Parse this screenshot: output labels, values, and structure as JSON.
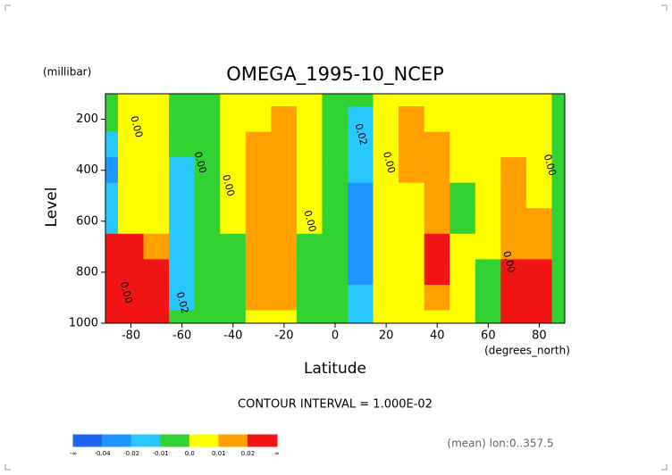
{
  "chart_data": {
    "type": "contour",
    "title": "OMEGA_1995-10_NCEP",
    "y_unit": "(millibar)",
    "y_label": "Level",
    "x_label": "Latitude",
    "x_unit": "(degrees_north)",
    "note": "CONTOUR INTERVAL = 1.000E-02",
    "footer": "(mean) lon:0..357.5",
    "xlim": [
      -90,
      90
    ],
    "ylim": [
      1000,
      100
    ],
    "xticks": [
      -80,
      -60,
      -40,
      -20,
      0,
      20,
      40,
      60,
      80
    ],
    "yticks": [
      200,
      400,
      600,
      800,
      1000
    ],
    "x": [
      -90,
      -80,
      -70,
      -60,
      -50,
      -40,
      -30,
      -20,
      -10,
      0,
      10,
      20,
      30,
      40,
      50,
      60,
      70,
      80,
      90
    ],
    "y": [
      100,
      200,
      300,
      400,
      500,
      600,
      700,
      800,
      900,
      1000
    ],
    "z": [
      [
        -0.005,
        0.005,
        0.005,
        -0.005,
        -0.005,
        0.005,
        0.005,
        0.008,
        0.004,
        -0.004,
        -0.008,
        0.004,
        0.006,
        0.005,
        0.004,
        0.004,
        0.005,
        0.003,
        -0.003
      ],
      [
        -0.008,
        0.005,
        0.005,
        -0.005,
        -0.005,
        0.005,
        0.008,
        0.014,
        0.005,
        -0.004,
        -0.014,
        0.004,
        0.012,
        0.008,
        0.004,
        0.004,
        0.006,
        0.004,
        -0.003
      ],
      [
        -0.015,
        0.005,
        0.003,
        -0.008,
        -0.005,
        0.004,
        0.012,
        0.016,
        0.005,
        -0.004,
        -0.016,
        0.004,
        0.012,
        0.012,
        0.003,
        0.004,
        0.008,
        0.005,
        -0.003
      ],
      [
        -0.025,
        0.005,
        0.003,
        -0.012,
        -0.005,
        0.004,
        0.015,
        0.017,
        0.004,
        -0.004,
        -0.018,
        0.004,
        0.011,
        0.014,
        0.002,
        0.003,
        0.011,
        0.006,
        -0.003
      ],
      [
        -0.02,
        0.005,
        0.004,
        -0.015,
        -0.005,
        0.003,
        0.015,
        0.017,
        0.003,
        -0.004,
        -0.022,
        0.004,
        0.008,
        0.015,
        -0.002,
        0.002,
        0.013,
        0.008,
        -0.003
      ],
      [
        -0.012,
        0.008,
        0.006,
        -0.015,
        -0.005,
        0.002,
        0.015,
        0.016,
        0.002,
        -0.004,
        -0.024,
        0.004,
        0.006,
        0.017,
        -0.005,
        0.002,
        0.014,
        0.01,
        -0.003
      ],
      [
        0.025,
        0.03,
        0.015,
        -0.015,
        -0.005,
        -0.003,
        0.014,
        0.015,
        -0.002,
        -0.004,
        -0.025,
        0.004,
        0.006,
        0.022,
        0.002,
        0.001,
        0.016,
        0.015,
        -0.003
      ],
      [
        0.04,
        0.05,
        0.03,
        -0.015,
        -0.005,
        -0.004,
        0.013,
        0.014,
        -0.004,
        -0.004,
        -0.024,
        0.004,
        0.006,
        0.025,
        0.003,
        -0.002,
        0.022,
        0.025,
        -0.003
      ],
      [
        0.05,
        0.06,
        0.03,
        -0.012,
        -0.003,
        -0.003,
        0.011,
        0.012,
        -0.004,
        -0.004,
        -0.018,
        0.004,
        0.005,
        0.015,
        0.004,
        -0.004,
        0.028,
        0.04,
        -0.005
      ],
      [
        0.05,
        0.06,
        0.025,
        -0.005,
        -0.003,
        -0.002,
        0.006,
        0.008,
        -0.003,
        -0.004,
        -0.012,
        0.004,
        0.004,
        0.008,
        0.004,
        -0.004,
        0.03,
        0.04,
        -0.005
      ]
    ],
    "contour_labels": [
      {
        "text": "0.00",
        "x": -78,
        "y": 230
      },
      {
        "text": "0.00",
        "x": -53,
        "y": 370
      },
      {
        "text": "0.00",
        "x": -42,
        "y": 460
      },
      {
        "text": "0.00",
        "x": -10,
        "y": 600
      },
      {
        "text": "0.02",
        "x": 10,
        "y": 260
      },
      {
        "text": "0.00",
        "x": 21,
        "y": 370
      },
      {
        "text": "0.00",
        "x": 68,
        "y": 760
      },
      {
        "text": "0.00",
        "x": 84,
        "y": 380
      },
      {
        "text": "0.02",
        "x": -60,
        "y": 920
      },
      {
        "text": "0.00",
        "x": -82,
        "y": 880
      }
    ],
    "colorbar": {
      "colors": [
        "#1e64f0",
        "#1e96ff",
        "#28c8ff",
        "#32d232",
        "#ffff00",
        "#ffa000",
        "#f01414"
      ],
      "levels": [
        -0.04,
        -0.02,
        -0.01,
        {
          "value": 0,
          "label": "0.0"
        },
        0.01,
        0.02
      ],
      "ends": [
        "-∞",
        "∞"
      ]
    }
  }
}
